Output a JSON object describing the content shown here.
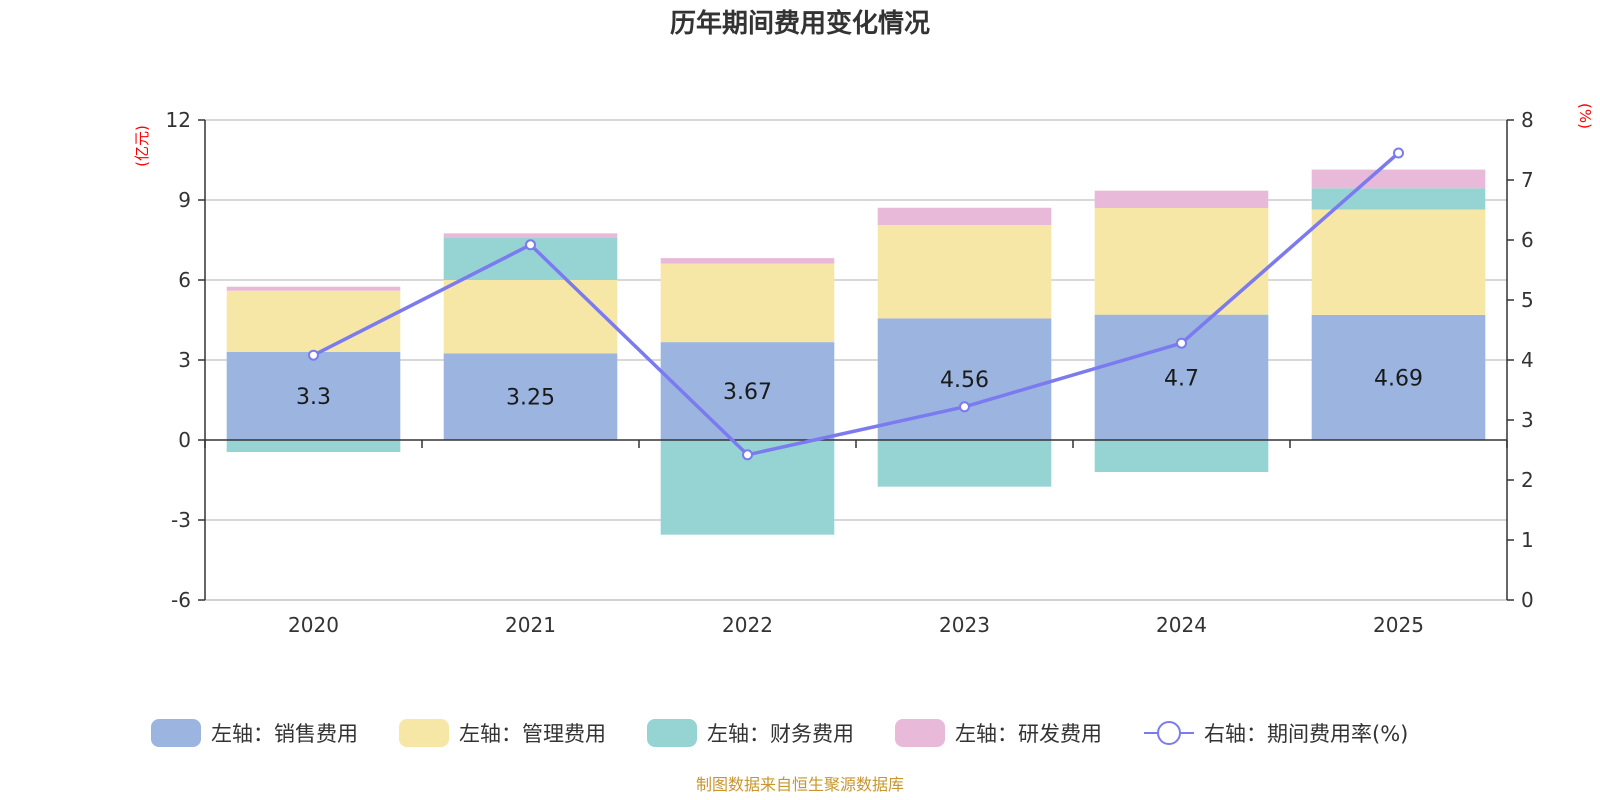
{
  "chart_data": {
    "type": "bar",
    "stacked": true,
    "title": "历年期间费用变化情况",
    "categories": [
      "2020",
      "2021",
      "2022",
      "2023",
      "2024",
      "2025"
    ],
    "left_axis": {
      "unit_label": "(亿元)",
      "ylim": [
        -6,
        12
      ],
      "ticks": [
        -6,
        -3,
        0,
        3,
        6,
        9,
        12
      ]
    },
    "right_axis": {
      "unit_label": "(%)",
      "ylim": [
        0,
        8
      ],
      "ticks": [
        0,
        1,
        2,
        3,
        4,
        5,
        6,
        7,
        8
      ]
    },
    "series": [
      {
        "name": "左轴：销售费用",
        "axis": "left",
        "kind": "bar",
        "color": "#9bb5e0",
        "values": [
          3.3,
          3.25,
          3.67,
          4.56,
          4.7,
          4.69
        ],
        "show_labels": true
      },
      {
        "name": "左轴：管理费用",
        "axis": "left",
        "kind": "bar",
        "color": "#f7e7a6",
        "values": [
          2.3,
          2.75,
          2.95,
          3.5,
          4.0,
          3.95
        ]
      },
      {
        "name": "左轴：财务费用",
        "axis": "left",
        "kind": "bar",
        "color": "#96d4d4",
        "values": [
          -0.45,
          1.6,
          -3.55,
          -1.75,
          -1.2,
          0.8
        ]
      },
      {
        "name": "左轴：研发费用",
        "axis": "left",
        "kind": "bar",
        "color": "#e8b9d9",
        "values": [
          0.15,
          0.15,
          0.2,
          0.65,
          0.65,
          0.7
        ]
      },
      {
        "name": "右轴：期间费用率(%)",
        "axis": "right",
        "kind": "line",
        "color": "#7b7bef",
        "values": [
          4.08,
          5.92,
          2.42,
          3.22,
          4.28,
          7.45
        ]
      }
    ]
  },
  "source_note": "制图数据来自恒生聚源数据库"
}
